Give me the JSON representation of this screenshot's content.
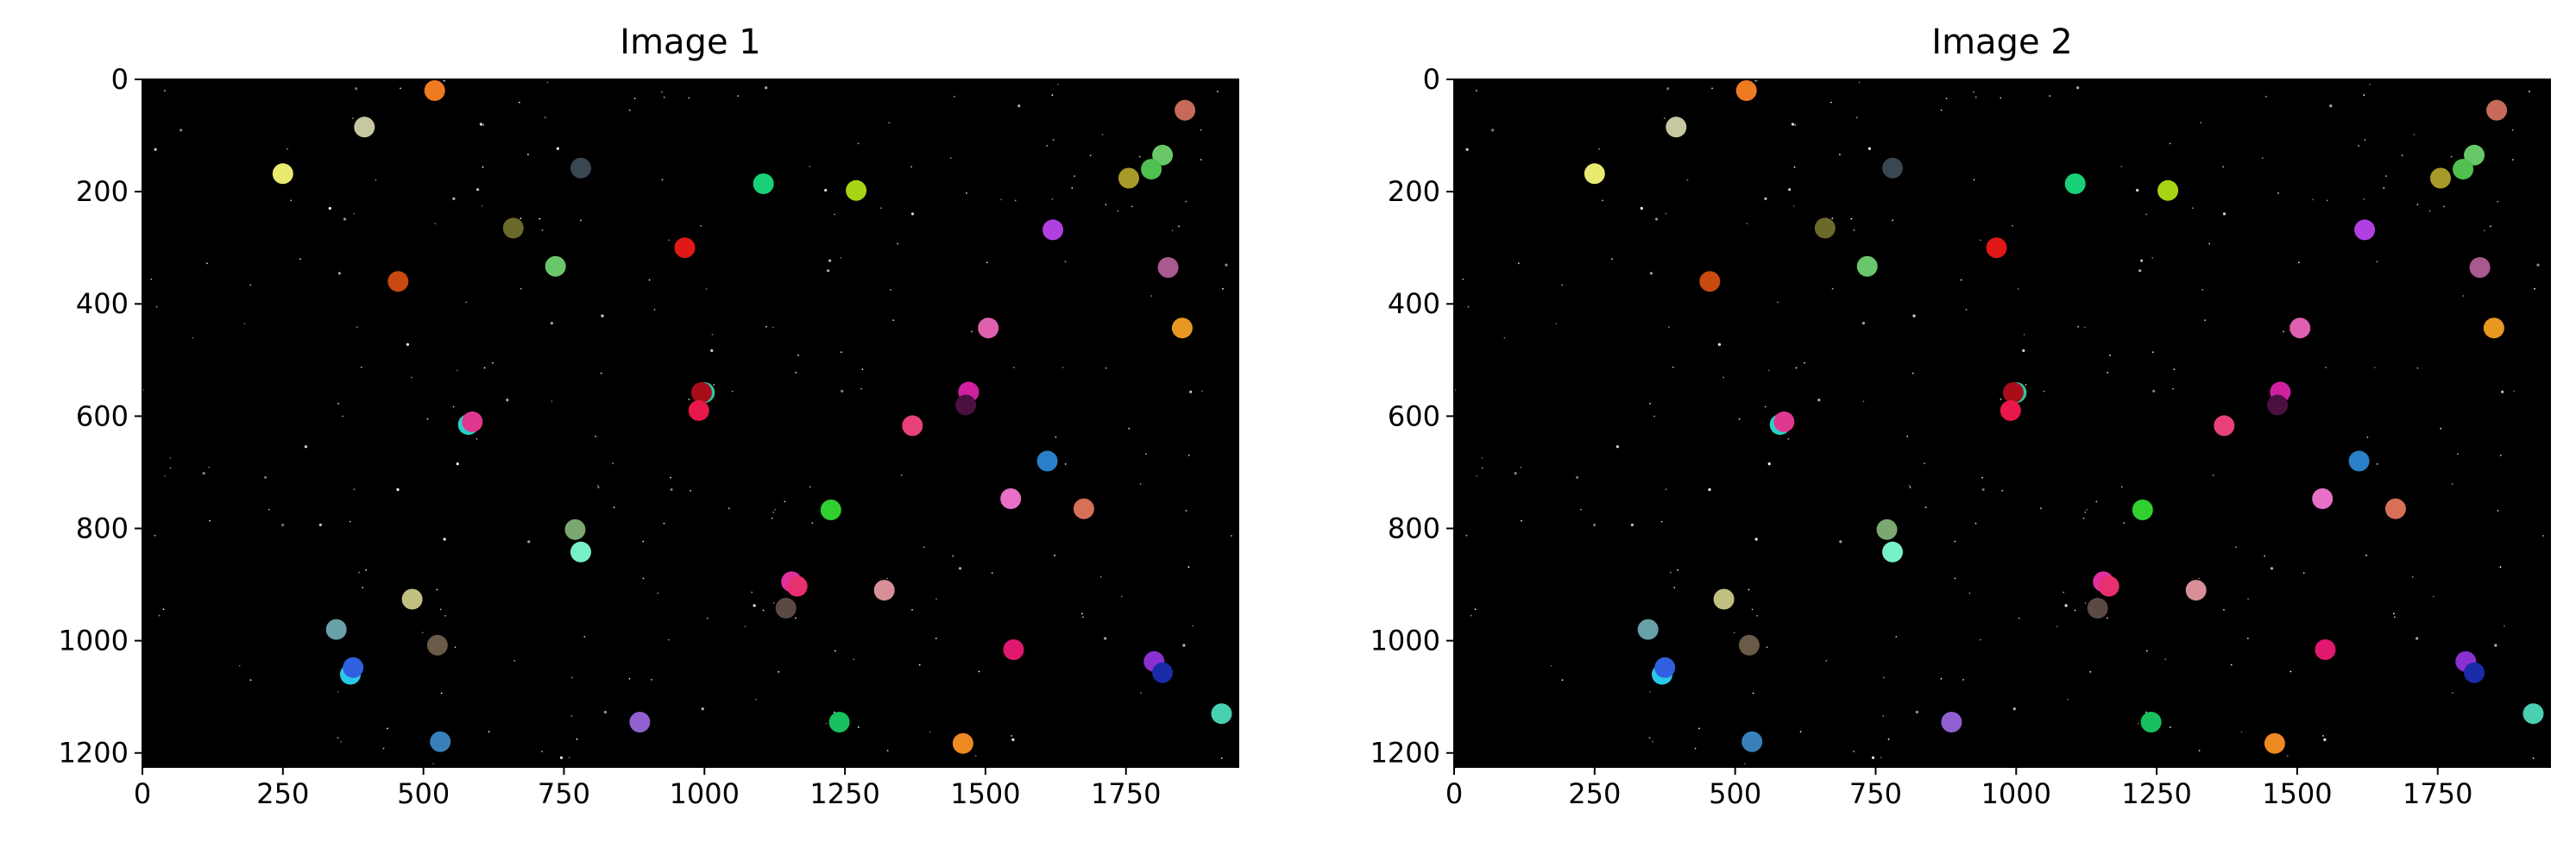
{
  "chart_data": [
    {
      "type": "scatter",
      "title": "Image 1",
      "xlim": [
        0,
        1950
      ],
      "ylim": [
        1225,
        0
      ],
      "x_ticks": [
        0,
        250,
        500,
        750,
        1000,
        1250,
        1500,
        1750
      ],
      "x_tick_labels": [
        "0",
        "250",
        "500",
        "750",
        "1000",
        "1250",
        "1500",
        "1750"
      ],
      "y_ticks": [
        0,
        200,
        400,
        600,
        800,
        1000,
        1200
      ],
      "y_tick_labels": [
        "0",
        "200",
        "400",
        "600",
        "800",
        "1000",
        "1200"
      ],
      "background": "#000000",
      "grid": false,
      "points": [
        {
          "x": 520,
          "y": 20,
          "color": "#ee7a22"
        },
        {
          "x": 395,
          "y": 85,
          "color": "#c8c8a0"
        },
        {
          "x": 250,
          "y": 168,
          "color": "#eaea70"
        },
        {
          "x": 780,
          "y": 158,
          "color": "#3a4650"
        },
        {
          "x": 1105,
          "y": 186,
          "color": "#18d07a"
        },
        {
          "x": 1270,
          "y": 198,
          "color": "#a8d418"
        },
        {
          "x": 1855,
          "y": 55,
          "color": "#c86a5a"
        },
        {
          "x": 1815,
          "y": 135,
          "color": "#68c868"
        },
        {
          "x": 1795,
          "y": 160,
          "color": "#50c050"
        },
        {
          "x": 1755,
          "y": 176,
          "color": "#a89a28"
        },
        {
          "x": 660,
          "y": 265,
          "color": "#6a6a2a"
        },
        {
          "x": 1620,
          "y": 268,
          "color": "#b040e0"
        },
        {
          "x": 965,
          "y": 300,
          "color": "#e01818"
        },
        {
          "x": 735,
          "y": 333,
          "color": "#6ac66a"
        },
        {
          "x": 1825,
          "y": 335,
          "color": "#a85a90"
        },
        {
          "x": 455,
          "y": 360,
          "color": "#c84a10"
        },
        {
          "x": 1850,
          "y": 443,
          "color": "#e89820"
        },
        {
          "x": 1505,
          "y": 443,
          "color": "#e060b0"
        },
        {
          "x": 1000,
          "y": 558,
          "color": "#2ac8a8"
        },
        {
          "x": 995,
          "y": 558,
          "color": "#a80e1a"
        },
        {
          "x": 1470,
          "y": 557,
          "color": "#d020a0"
        },
        {
          "x": 1465,
          "y": 580,
          "color": "#4a1040"
        },
        {
          "x": 990,
          "y": 590,
          "color": "#e8184a"
        },
        {
          "x": 580,
          "y": 615,
          "color": "#2ad0c8"
        },
        {
          "x": 587,
          "y": 610,
          "color": "#e03890"
        },
        {
          "x": 1370,
          "y": 617,
          "color": "#e8407a"
        },
        {
          "x": 1610,
          "y": 680,
          "color": "#2a80c8"
        },
        {
          "x": 1545,
          "y": 747,
          "color": "#e870c8"
        },
        {
          "x": 1675,
          "y": 765,
          "color": "#d87058"
        },
        {
          "x": 1225,
          "y": 767,
          "color": "#30d030"
        },
        {
          "x": 770,
          "y": 802,
          "color": "#7aa870"
        },
        {
          "x": 780,
          "y": 842,
          "color": "#78f0c8"
        },
        {
          "x": 1155,
          "y": 895,
          "color": "#e030a0"
        },
        {
          "x": 1165,
          "y": 903,
          "color": "#e83070"
        },
        {
          "x": 1320,
          "y": 910,
          "color": "#d89098"
        },
        {
          "x": 480,
          "y": 926,
          "color": "#c0c080"
        },
        {
          "x": 1145,
          "y": 942,
          "color": "#5a4a42"
        },
        {
          "x": 345,
          "y": 980,
          "color": "#6aa0a8"
        },
        {
          "x": 525,
          "y": 1008,
          "color": "#6a5a48"
        },
        {
          "x": 1550,
          "y": 1016,
          "color": "#e01870"
        },
        {
          "x": 1800,
          "y": 1037,
          "color": "#8a30d0"
        },
        {
          "x": 370,
          "y": 1060,
          "color": "#2ac8e8"
        },
        {
          "x": 375,
          "y": 1048,
          "color": "#3060e0"
        },
        {
          "x": 1815,
          "y": 1057,
          "color": "#1a2aa8"
        },
        {
          "x": 1920,
          "y": 1130,
          "color": "#48d0b0"
        },
        {
          "x": 885,
          "y": 1145,
          "color": "#9060d0"
        },
        {
          "x": 1240,
          "y": 1145,
          "color": "#18c060"
        },
        {
          "x": 530,
          "y": 1180,
          "color": "#3a80b8"
        },
        {
          "x": 1460,
          "y": 1183,
          "color": "#ee8a22"
        }
      ]
    },
    {
      "type": "scatter",
      "title": "Image 2",
      "xlim": [
        0,
        1950
      ],
      "ylim": [
        1225,
        0
      ],
      "x_ticks": [
        0,
        250,
        500,
        750,
        1000,
        1250,
        1500,
        1750
      ],
      "x_tick_labels": [
        "0",
        "250",
        "500",
        "750",
        "1000",
        "1250",
        "1500",
        "1750"
      ],
      "y_ticks": [
        0,
        200,
        400,
        600,
        800,
        1000,
        1200
      ],
      "y_tick_labels": [
        "0",
        "200",
        "400",
        "600",
        "800",
        "1000",
        "1200"
      ],
      "background": "#000000",
      "grid": false,
      "points": [
        {
          "x": 520,
          "y": 20,
          "color": "#ee7a22"
        },
        {
          "x": 395,
          "y": 85,
          "color": "#c8c8a0"
        },
        {
          "x": 250,
          "y": 168,
          "color": "#eaea70"
        },
        {
          "x": 780,
          "y": 158,
          "color": "#3a4650"
        },
        {
          "x": 1105,
          "y": 186,
          "color": "#18d07a"
        },
        {
          "x": 1270,
          "y": 198,
          "color": "#a8d418"
        },
        {
          "x": 1855,
          "y": 55,
          "color": "#c86a5a"
        },
        {
          "x": 1815,
          "y": 135,
          "color": "#68c868"
        },
        {
          "x": 1795,
          "y": 160,
          "color": "#50c050"
        },
        {
          "x": 1755,
          "y": 176,
          "color": "#a89a28"
        },
        {
          "x": 660,
          "y": 265,
          "color": "#6a6a2a"
        },
        {
          "x": 1620,
          "y": 268,
          "color": "#b040e0"
        },
        {
          "x": 965,
          "y": 300,
          "color": "#e01818"
        },
        {
          "x": 735,
          "y": 333,
          "color": "#6ac66a"
        },
        {
          "x": 1825,
          "y": 335,
          "color": "#a85a90"
        },
        {
          "x": 455,
          "y": 360,
          "color": "#c84a10"
        },
        {
          "x": 1850,
          "y": 443,
          "color": "#e89820"
        },
        {
          "x": 1505,
          "y": 443,
          "color": "#e060b0"
        },
        {
          "x": 1000,
          "y": 558,
          "color": "#2ac8a8"
        },
        {
          "x": 995,
          "y": 558,
          "color": "#a80e1a"
        },
        {
          "x": 1470,
          "y": 557,
          "color": "#d020a0"
        },
        {
          "x": 1465,
          "y": 580,
          "color": "#4a1040"
        },
        {
          "x": 990,
          "y": 590,
          "color": "#e8184a"
        },
        {
          "x": 580,
          "y": 615,
          "color": "#2ad0c8"
        },
        {
          "x": 587,
          "y": 610,
          "color": "#e03890"
        },
        {
          "x": 1370,
          "y": 617,
          "color": "#e8407a"
        },
        {
          "x": 1610,
          "y": 680,
          "color": "#2a80c8"
        },
        {
          "x": 1545,
          "y": 747,
          "color": "#e870c8"
        },
        {
          "x": 1675,
          "y": 765,
          "color": "#d87058"
        },
        {
          "x": 1225,
          "y": 767,
          "color": "#30d030"
        },
        {
          "x": 770,
          "y": 802,
          "color": "#7aa870"
        },
        {
          "x": 780,
          "y": 842,
          "color": "#78f0c8"
        },
        {
          "x": 1155,
          "y": 895,
          "color": "#e030a0"
        },
        {
          "x": 1165,
          "y": 903,
          "color": "#e83070"
        },
        {
          "x": 1320,
          "y": 910,
          "color": "#d89098"
        },
        {
          "x": 480,
          "y": 926,
          "color": "#c0c080"
        },
        {
          "x": 1145,
          "y": 942,
          "color": "#5a4a42"
        },
        {
          "x": 345,
          "y": 980,
          "color": "#6aa0a8"
        },
        {
          "x": 525,
          "y": 1008,
          "color": "#6a5a48"
        },
        {
          "x": 1550,
          "y": 1016,
          "color": "#e01870"
        },
        {
          "x": 1800,
          "y": 1037,
          "color": "#8a30d0"
        },
        {
          "x": 370,
          "y": 1060,
          "color": "#2ac8e8"
        },
        {
          "x": 375,
          "y": 1048,
          "color": "#3060e0"
        },
        {
          "x": 1815,
          "y": 1057,
          "color": "#1a2aa8"
        },
        {
          "x": 1920,
          "y": 1130,
          "color": "#48d0b0"
        },
        {
          "x": 885,
          "y": 1145,
          "color": "#9060d0"
        },
        {
          "x": 1240,
          "y": 1145,
          "color": "#18c060"
        },
        {
          "x": 530,
          "y": 1180,
          "color": "#3a80b8"
        },
        {
          "x": 1460,
          "y": 1183,
          "color": "#ee8a22"
        }
      ]
    }
  ]
}
